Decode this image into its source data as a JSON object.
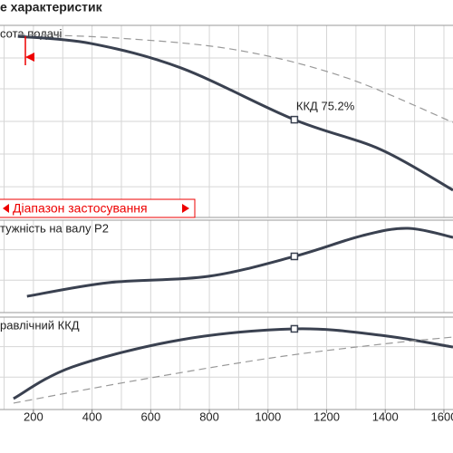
{
  "chart_data": {
    "type": "line",
    "title": "е характеристик",
    "xlim": [
      86,
      1631
    ],
    "xticks": [
      200,
      400,
      600,
      800,
      1000,
      1200,
      1400,
      1600
    ],
    "x_grid": [
      100,
      200,
      300,
      400,
      500,
      600,
      700,
      800,
      900,
      1000,
      1100,
      1200,
      1300,
      1400,
      1500,
      1600
    ],
    "range_label": "Діапазон застосування",
    "panels": [
      {
        "label": "сота подачі",
        "ylim": [
          0,
          100
        ],
        "y_grid": [
          16,
          33,
          50,
          67,
          83
        ],
        "series": [
          {
            "color": "#3a4150",
            "dash": false,
            "x": [
              147,
              395,
              704,
              1090,
              1384,
              1631
            ],
            "values": [
              94.3,
              90.6,
              77.8,
              50.9,
              35.4,
              14.2
            ]
          },
          {
            "color": "#999999",
            "dash": true,
            "x": [
              147,
              487,
              889,
              1260,
              1631
            ],
            "values": [
              95.3,
              93.4,
              87.3,
              73.1,
              49.5
            ]
          }
        ],
        "marker": {
          "x": 1090,
          "y": 50.9,
          "label": "ККД  75.2%"
        }
      },
      {
        "label": "тужність на валу P2",
        "ylim": [
          0,
          100
        ],
        "y_grid": [
          35,
          68
        ],
        "series": [
          {
            "color": "#3a4150",
            "dash": false,
            "x": [
              178,
              456,
              796,
              1090,
              1322,
              1477,
              1631
            ],
            "values": [
              17.6,
              32.4,
              39.2,
              60.8,
              83.3,
              91.2,
              81.4
            ]
          }
        ],
        "marker": {
          "x": 1090,
          "y": 60.8
        }
      },
      {
        "label": "равлічний ККД",
        "ylim": [
          0,
          100
        ],
        "y_grid": [
          35,
          68
        ],
        "series": [
          {
            "color": "#3a4150",
            "dash": false,
            "x": [
              132,
              333,
              704,
              1090,
              1384,
              1631
            ],
            "values": [
              11.8,
              46.1,
              75.5,
              87.3,
              80.4,
              67.6
            ]
          },
          {
            "color": "#999999",
            "dash": true,
            "x": [
              132,
              549,
              1013,
              1384,
              1631
            ],
            "values": [
              6.9,
              31.4,
              55.9,
              70.6,
              78.4
            ]
          }
        ],
        "marker": {
          "x": 1090,
          "y": 87.3
        }
      }
    ]
  }
}
